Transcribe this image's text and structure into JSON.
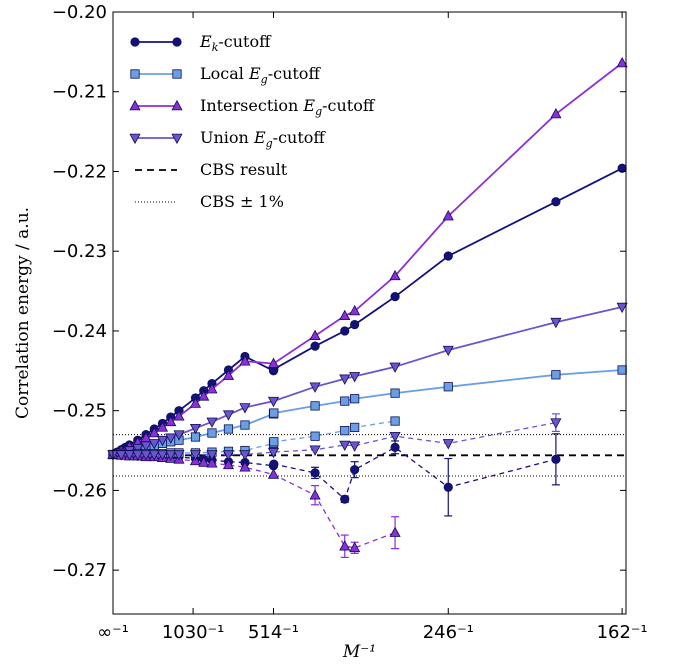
{
  "chart_data": {
    "type": "line",
    "xlabel": "M⁻¹",
    "ylabel": "Correlation energy / a.u.",
    "x_tick_labels": [
      "∞⁻¹",
      "1030⁻¹",
      "514⁻¹",
      "246⁻¹",
      "162⁻¹"
    ],
    "x_ticks": [
      0.0,
      0.000971,
      0.001946,
      0.004065,
      0.006173
    ],
    "xlim": [
      0.0,
      0.00622
    ],
    "ylim": [
      -0.2755,
      -0.2
    ],
    "y_ticks": [
      -0.27,
      -0.26,
      -0.25,
      -0.24,
      -0.23,
      -0.22,
      -0.21,
      -0.2
    ],
    "y_tick_labels": [
      "−0.27",
      "−0.26",
      "−0.25",
      "−0.24",
      "−0.23",
      "−0.22",
      "−0.21",
      "−0.20"
    ],
    "grid": false,
    "legend_position": "top-left",
    "series": [
      {
        "name": "E_k-cutoff",
        "legend_main": "E",
        "legend_sub": "k",
        "legend_suffix": "-cutoff",
        "color": "#14127a",
        "marker": "circle",
        "style": "solid",
        "x": [
          0.0,
          5e-05,
          0.0001,
          0.00015,
          0.0002,
          0.0003,
          0.0004,
          0.0005,
          0.0006,
          0.0007,
          0.0008,
          0.001,
          0.0011,
          0.0012,
          0.0014,
          0.0016,
          0.001946,
          0.00195,
          0.00245,
          0.00281,
          0.00293,
          0.00342,
          0.004065,
          0.00537,
          0.006173
        ],
        "y": [
          -0.2555,
          -0.2552,
          -0.2549,
          -0.2546,
          -0.2543,
          -0.2537,
          -0.253,
          -0.2523,
          -0.2516,
          -0.2508,
          -0.25,
          -0.2484,
          -0.2475,
          -0.2466,
          -0.2449,
          -0.2432,
          -0.245,
          -0.2448,
          -0.2419,
          -0.24,
          -0.2392,
          -0.2357,
          -0.2306,
          -0.2238,
          -0.2196
        ]
      },
      {
        "name": "Local E_g-cutoff",
        "legend_prefix": "Local ",
        "legend_main": "E",
        "legend_sub": "g",
        "legend_suffix": "-cutoff",
        "color": "#6a9fe4",
        "marker": "square",
        "style": "solid",
        "x": [
          0.0,
          0.0001,
          0.0002,
          0.0003,
          0.0004,
          0.0005,
          0.0006,
          0.0007,
          0.0008,
          0.001,
          0.0012,
          0.0014,
          0.0016,
          0.001946,
          0.00195,
          0.00245,
          0.00281,
          0.00293,
          0.00342,
          0.004065,
          0.00537,
          0.006173
        ],
        "y": [
          -0.2555,
          -0.2553,
          -0.2551,
          -0.2549,
          -0.2546,
          -0.2544,
          -0.2541,
          -0.2539,
          -0.2537,
          -0.2533,
          -0.2528,
          -0.2523,
          -0.2518,
          -0.2504,
          -0.2503,
          -0.2494,
          -0.2488,
          -0.2485,
          -0.2478,
          -0.247,
          -0.2455,
          -0.2449
        ]
      },
      {
        "name": "Intersection E_g-cutoff",
        "legend_prefix": "Intersection ",
        "legend_main": "E",
        "legend_sub": "g",
        "legend_suffix": "-cutoff",
        "color": "#8b2fd6",
        "marker": "triangle-up",
        "style": "solid",
        "x": [
          0.0,
          0.0001,
          0.0002,
          0.0003,
          0.0004,
          0.0005,
          0.0006,
          0.0007,
          0.0008,
          0.001,
          0.0011,
          0.0012,
          0.0014,
          0.0016,
          0.001946,
          0.00245,
          0.00281,
          0.00293,
          0.00342,
          0.004065,
          0.00537,
          0.006173
        ],
        "y": [
          -0.2555,
          -0.255,
          -0.2545,
          -0.254,
          -0.2534,
          -0.2528,
          -0.2521,
          -0.2514,
          -0.2507,
          -0.2491,
          -0.2482,
          -0.2473,
          -0.2456,
          -0.2438,
          -0.2441,
          -0.2406,
          -0.2381,
          -0.2375,
          -0.2331,
          -0.2256,
          -0.2128,
          -0.2064
        ]
      },
      {
        "name": "Union E_g-cutoff",
        "legend_prefix": "Union ",
        "legend_main": "E",
        "legend_sub": "g",
        "legend_suffix": "-cutoff",
        "color": "#6a55cf",
        "marker": "triangle-down",
        "style": "solid",
        "x": [
          0.0,
          0.0001,
          0.0002,
          0.0003,
          0.0004,
          0.0005,
          0.0006,
          0.0007,
          0.0008,
          0.001,
          0.0012,
          0.0014,
          0.0016,
          0.001946,
          0.00245,
          0.00281,
          0.00293,
          0.00342,
          0.004065,
          0.00537,
          0.006173
        ],
        "y": [
          -0.2555,
          -0.2553,
          -0.255,
          -0.2547,
          -0.2544,
          -0.2541,
          -0.2537,
          -0.2534,
          -0.253,
          -0.2522,
          -0.2514,
          -0.2505,
          -0.2496,
          -0.2488,
          -0.247,
          -0.246,
          -0.2457,
          -0.2445,
          -0.2424,
          -0.2389,
          -0.237
        ]
      },
      {
        "name": "E_k-cutoff extrapolated",
        "color": "#14127a",
        "marker": "circle",
        "style": "dashed",
        "x": [
          0.0,
          0.0001,
          0.0002,
          0.0003,
          0.0004,
          0.0005,
          0.0006,
          0.0007,
          0.0008,
          0.001,
          0.0011,
          0.0012,
          0.0014,
          0.0016,
          0.001946,
          0.00195,
          0.00245,
          0.00281,
          0.00293,
          0.00342,
          0.004065,
          0.00537
        ],
        "y": [
          -0.2555,
          -0.2556,
          -0.2556,
          -0.2557,
          -0.2557,
          -0.2557,
          -0.2558,
          -0.2558,
          -0.2558,
          -0.256,
          -0.2561,
          -0.2562,
          -0.2564,
          -0.2565,
          -0.2569,
          -0.2567,
          -0.2578,
          -0.2611,
          -0.2574,
          -0.2546,
          -0.2596,
          -0.2561
        ],
        "err": [
          0,
          0,
          0,
          0,
          0,
          0,
          0,
          0,
          0,
          0,
          0,
          0,
          0,
          0,
          0,
          0,
          0.0007,
          0.0004,
          0.001,
          0.0008,
          0.0036,
          0.0032
        ]
      },
      {
        "name": "Local E_g-cutoff extrapolated",
        "color": "#6a9fe4",
        "marker": "square",
        "style": "dashed",
        "x": [
          0.0,
          0.0001,
          0.0002,
          0.0003,
          0.0004,
          0.0005,
          0.0006,
          0.0007,
          0.0008,
          0.001,
          0.0012,
          0.0014,
          0.0016,
          0.001946,
          0.00195,
          0.00245,
          0.00281,
          0.00293,
          0.00342
        ],
        "y": [
          -0.2555,
          -0.2555,
          -0.2555,
          -0.2554,
          -0.2554,
          -0.2554,
          -0.2554,
          -0.2553,
          -0.2553,
          -0.2553,
          -0.2552,
          -0.2551,
          -0.255,
          -0.2541,
          -0.2539,
          -0.2532,
          -0.2525,
          -0.2521,
          -0.2513
        ]
      },
      {
        "name": "Intersection E_g-cutoff extrapolated",
        "color": "#8b2fd6",
        "marker": "triangle-up",
        "style": "dashed",
        "x": [
          0.0,
          0.0001,
          0.0002,
          0.0003,
          0.0004,
          0.0005,
          0.0006,
          0.0007,
          0.0008,
          0.001,
          0.0011,
          0.0012,
          0.0014,
          0.0016,
          0.001946,
          0.00245,
          0.00281,
          0.00293,
          0.00342
        ],
        "y": [
          -0.2555,
          -0.2556,
          -0.2557,
          -0.2557,
          -0.2558,
          -0.2558,
          -0.2559,
          -0.256,
          -0.2561,
          -0.2563,
          -0.2565,
          -0.2566,
          -0.2568,
          -0.2571,
          -0.258,
          -0.2606,
          -0.267,
          -0.2672,
          -0.2653
        ],
        "err": [
          0,
          0,
          0,
          0,
          0,
          0,
          0,
          0,
          0,
          0,
          0,
          0,
          0,
          0,
          0,
          0.0012,
          0.0014,
          0.0007,
          0.002
        ]
      },
      {
        "name": "Union E_g-cutoff extrapolated",
        "color": "#6a55cf",
        "marker": "triangle-down",
        "style": "dashed",
        "x": [
          0.0,
          0.0001,
          0.0002,
          0.0003,
          0.0004,
          0.0005,
          0.0006,
          0.0007,
          0.0008,
          0.001,
          0.0012,
          0.0014,
          0.0016,
          0.001946,
          0.00245,
          0.00281,
          0.00293,
          0.00342,
          0.004065,
          0.00537
        ],
        "y": [
          -0.2555,
          -0.2555,
          -0.2555,
          -0.2555,
          -0.2555,
          -0.2555,
          -0.2555,
          -0.2555,
          -0.2555,
          -0.2555,
          -0.2555,
          -0.2555,
          -0.2555,
          -0.2552,
          -0.2549,
          -0.2543,
          -0.2544,
          -0.2532,
          -0.2541,
          -0.2515
        ],
        "err": [
          0,
          0,
          0,
          0,
          0,
          0,
          0,
          0,
          0,
          0,
          0,
          0,
          0,
          0,
          0,
          0,
          0,
          0,
          0,
          0.0011
        ]
      }
    ],
    "reference_lines": [
      {
        "name": "CBS result",
        "y": -0.2556,
        "style": "dashed",
        "color": "#000000"
      },
      {
        "name": "CBS ± 1%",
        "y": -0.253,
        "style": "dotted",
        "color": "#000000"
      },
      {
        "name": "CBS ± 1% lower",
        "y": -0.2582,
        "style": "dotted",
        "color": "#000000"
      }
    ],
    "legend": {
      "entries": [
        {
          "text_plain": "-cutoff",
          "ref": 0
        },
        {
          "text_plain": "Local -cutoff",
          "ref": 1
        },
        {
          "text_plain": "Intersection -cutoff",
          "ref": 2
        },
        {
          "text_plain": "Union -cutoff",
          "ref": 3
        },
        {
          "text_plain": "CBS result",
          "ref": "dashed"
        },
        {
          "text_plain": "CBS ± 1%",
          "ref": "dotted"
        }
      ]
    }
  }
}
